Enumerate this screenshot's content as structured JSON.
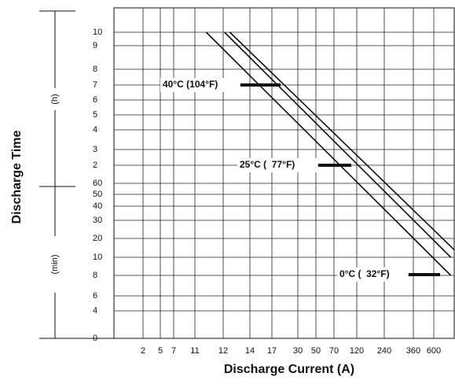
{
  "chart_data": {
    "type": "line",
    "x_label": "Discharge Current (A)",
    "y_label": "Discharge Time",
    "y_units": [
      "(h)",
      "(min)"
    ],
    "xlim": [
      0,
      840
    ],
    "xticks": [
      2,
      5,
      7,
      11,
      12,
      14,
      17,
      30,
      50,
      70,
      120,
      240,
      360,
      600
    ],
    "ylim": [
      0,
      660
    ],
    "yticks": [
      0,
      4,
      6,
      8,
      10,
      20,
      30,
      40,
      50,
      60,
      {
        "value": 120,
        "label": "2"
      },
      {
        "value": 180,
        "label": "3"
      },
      {
        "value": 240,
        "label": "4"
      },
      {
        "value": 300,
        "label": "5"
      },
      {
        "value": 360,
        "label": "6"
      },
      {
        "value": 420,
        "label": "7"
      },
      {
        "value": 480,
        "label": "8"
      },
      {
        "value": 540,
        "label": "9"
      },
      {
        "value": 600,
        "label": "10"
      }
    ],
    "grid": true,
    "series": [
      {
        "name": "40°C (104°F)",
        "color": "#111111",
        "x": [
          11.4,
          800
        ],
        "values": [
          600,
          8
        ]
      },
      {
        "name": "25°C (  77°F)",
        "color": "#111111",
        "x": [
          12.1,
          800
        ],
        "values": [
          600,
          10
        ]
      },
      {
        "name": "0°C (  32°F)",
        "color": "#111111",
        "x": [
          12.5,
          840
        ],
        "values": [
          600,
          14
        ]
      }
    ]
  }
}
